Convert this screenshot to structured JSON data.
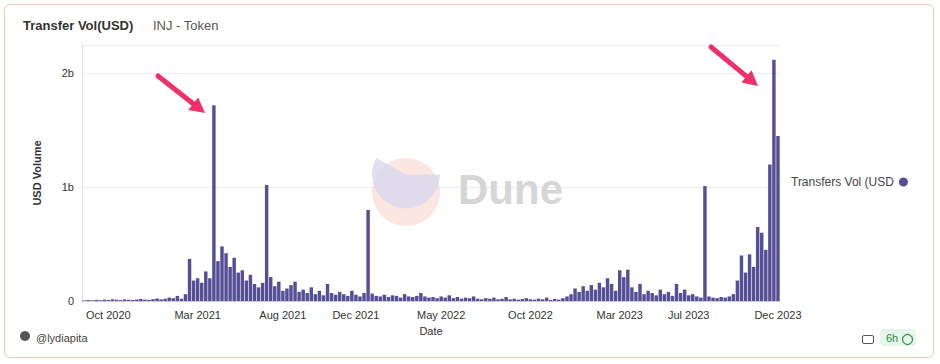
{
  "chart_data": {
    "type": "bar",
    "title": "Transfer Vol(USD)",
    "subtitle": "INJ - Token",
    "x_label": "Date",
    "y_label": "USD Volume",
    "categories": [
      null,
      null,
      null,
      null,
      null,
      null,
      "Oct 2020",
      null,
      null,
      null,
      null,
      null,
      null,
      null,
      null,
      null,
      null,
      null,
      null,
      null,
      null,
      null,
      null,
      null,
      null,
      null,
      null,
      null,
      "Mar 2021",
      null,
      null,
      null,
      null,
      null,
      null,
      null,
      null,
      null,
      null,
      null,
      null,
      null,
      null,
      null,
      null,
      null,
      null,
      null,
      null,
      "Aug 2021",
      null,
      null,
      null,
      null,
      null,
      null,
      null,
      null,
      null,
      null,
      null,
      null,
      null,
      null,
      null,
      null,
      null,
      "Dec 2021",
      null,
      null,
      null,
      null,
      null,
      null,
      null,
      null,
      null,
      null,
      null,
      null,
      null,
      null,
      null,
      null,
      null,
      null,
      null,
      null,
      "May 2022",
      null,
      null,
      null,
      null,
      null,
      null,
      null,
      null,
      null,
      null,
      null,
      null,
      null,
      null,
      null,
      null,
      null,
      null,
      null,
      null,
      null,
      "Oct 2022",
      null,
      null,
      null,
      null,
      null,
      null,
      null,
      null,
      null,
      null,
      null,
      null,
      null,
      null,
      null,
      null,
      null,
      null,
      null,
      null,
      null,
      "Mar 2023",
      null,
      null,
      null,
      null,
      null,
      null,
      null,
      null,
      null,
      null,
      null,
      null,
      null,
      null,
      null,
      null,
      "Jul 2023",
      null,
      null,
      null,
      null,
      null,
      null,
      null,
      null,
      null,
      null,
      null,
      null,
      null,
      null,
      null,
      null,
      null,
      null,
      null,
      null,
      null,
      "Dec 2023"
    ],
    "series": [
      {
        "name": "Transfers Vol (USD",
        "color": "#574f96",
        "values": [
          5000000.0,
          8000000.0,
          6000000.0,
          10000000.0,
          7000000.0,
          12000000.0,
          9000000.0,
          15000000.0,
          11000000.0,
          8000000.0,
          14000000.0,
          10000000.0,
          9000000.0,
          13000000.0,
          18000000.0,
          12000000.0,
          10000000.0,
          16000000.0,
          22000000.0,
          14000000.0,
          20000000.0,
          30000000.0,
          25000000.0,
          45000000.0,
          20000000.0,
          60000000.0,
          370000000.0,
          180000000.0,
          200000000.0,
          160000000.0,
          260000000.0,
          200000000.0,
          1720000000.0,
          350000000.0,
          480000000.0,
          420000000.0,
          300000000.0,
          380000000.0,
          250000000.0,
          270000000.0,
          180000000.0,
          230000000.0,
          150000000.0,
          120000000.0,
          160000000.0,
          1020000000.0,
          210000000.0,
          130000000.0,
          170000000.0,
          90000000.0,
          110000000.0,
          140000000.0,
          170000000.0,
          80000000.0,
          100000000.0,
          70000000.0,
          120000000.0,
          60000000.0,
          90000000.0,
          50000000.0,
          150000000.0,
          70000000.0,
          55000000.0,
          80000000.0,
          60000000.0,
          45000000.0,
          90000000.0,
          55000000.0,
          40000000.0,
          70000000.0,
          800000000.0,
          65000000.0,
          45000000.0,
          40000000.0,
          55000000.0,
          35000000.0,
          50000000.0,
          45000000.0,
          30000000.0,
          60000000.0,
          40000000.0,
          35000000.0,
          45000000.0,
          70000000.0,
          40000000.0,
          30000000.0,
          35000000.0,
          25000000.0,
          40000000.0,
          30000000.0,
          50000000.0,
          25000000.0,
          35000000.0,
          20000000.0,
          30000000.0,
          25000000.0,
          40000000.0,
          20000000.0,
          15000000.0,
          25000000.0,
          20000000.0,
          30000000.0,
          15000000.0,
          20000000.0,
          35000000.0,
          15000000.0,
          20000000.0,
          12000000.0,
          18000000.0,
          25000000.0,
          15000000.0,
          12000000.0,
          20000000.0,
          15000000.0,
          30000000.0,
          10000000.0,
          18000000.0,
          12000000.0,
          25000000.0,
          40000000.0,
          60000000.0,
          110000000.0,
          80000000.0,
          130000000.0,
          90000000.0,
          140000000.0,
          100000000.0,
          160000000.0,
          120000000.0,
          200000000.0,
          150000000.0,
          90000000.0,
          270000000.0,
          210000000.0,
          275000000.0,
          120000000.0,
          80000000.0,
          150000000.0,
          60000000.0,
          90000000.0,
          70000000.0,
          50000000.0,
          100000000.0,
          60000000.0,
          80000000.0,
          45000000.0,
          150000000.0,
          70000000.0,
          100000000.0,
          50000000.0,
          60000000.0,
          40000000.0,
          30000000.0,
          1010000000.0,
          40000000.0,
          30000000.0,
          25000000.0,
          35000000.0,
          30000000.0,
          40000000.0,
          60000000.0,
          180000000.0,
          400000000.0,
          250000000.0,
          410000000.0,
          300000000.0,
          650000000.0,
          600000000.0,
          450000000.0,
          1200000000.0,
          2120000000.0,
          1450000000.0
        ]
      }
    ],
    "ylim": [
      0,
      2250000000
    ],
    "yticks": [
      0,
      {
        "value": 1000000000,
        "label": "1b"
      },
      {
        "value": 2000000000,
        "label": "2b"
      }
    ],
    "grid": true,
    "legend": "right",
    "annotations": [
      "Dune",
      "@lydiapita",
      "6h"
    ]
  }
}
